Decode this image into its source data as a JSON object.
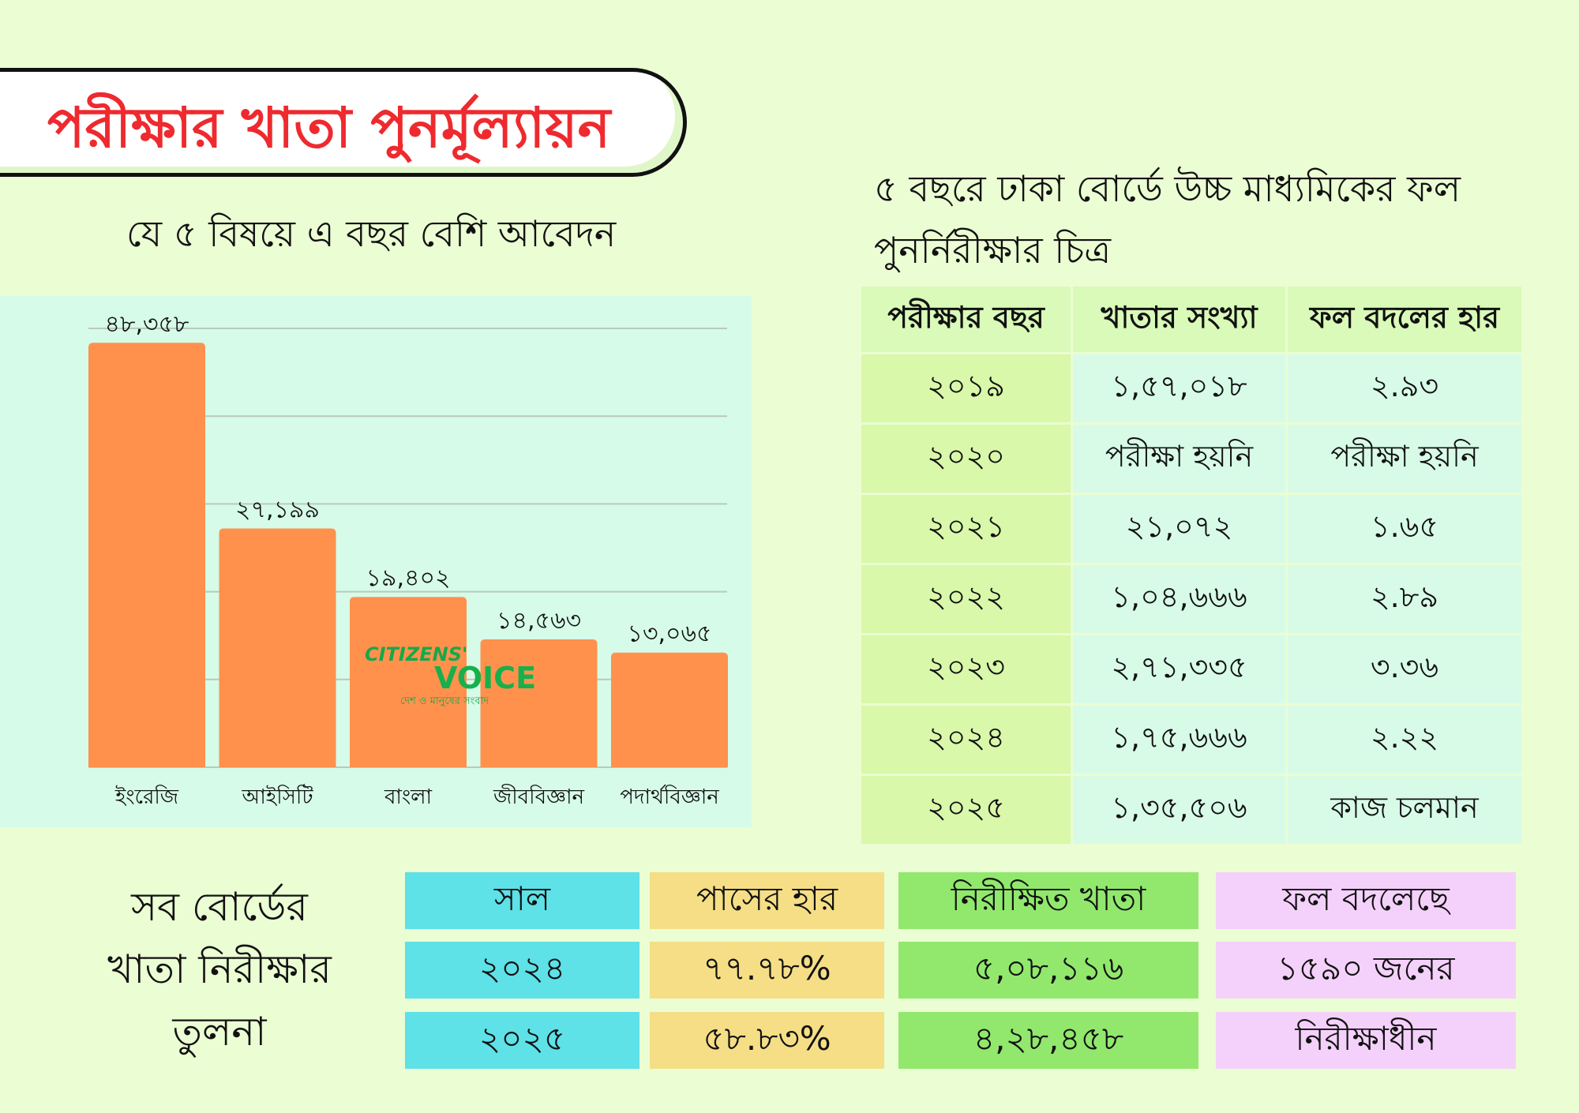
{
  "title": "পরীক্ষার খাতা পুনর্মূল্যায়ন",
  "chart_section": {
    "subtitle": "যে ৫ বিষয়ে এ বছর বেশি আবেদন"
  },
  "logo": {
    "line1": "CITIZENS'",
    "line2": "VOICE",
    "tagline": "দেশ ও মানুষের সংবাদ"
  },
  "chart_data": {
    "type": "bar",
    "categories": [
      "ইংরেজি",
      "আইসিটি",
      "বাংলা",
      "জীববিজ্ঞান",
      "পদার্থবিজ্ঞান"
    ],
    "values": [
      48358,
      27199,
      19402,
      14563,
      13065
    ],
    "data_labels": [
      "৪৮,৩৫৮",
      "২৭,১৯৯",
      "১৯,৪০২",
      "১৪,৫৬৩",
      "১৩,০৬৫"
    ],
    "ylim": [
      0,
      50000
    ],
    "grid": true,
    "bar_color": "#ff914d"
  },
  "history": {
    "heading_line1": "৫ বছরে ঢাকা বোর্ডে উচ্চ মাধ্যমিকের ফল",
    "heading_line2": "পুনর্নিরীক্ষার চিত্র",
    "headers": [
      "পরীক্ষার বছর",
      "খাতার সংখ্যা",
      "ফল বদলের হার"
    ],
    "rows": [
      [
        "২০১৯",
        "১,৫৭,০১৮",
        "২.৯৩"
      ],
      [
        "২০২০",
        "পরীক্ষা হয়নি",
        "পরীক্ষা হয়নি"
      ],
      [
        "২০২১",
        "২১,০৭২",
        "১.৬৫"
      ],
      [
        "২০২২",
        "১,০৪,৬৬৬",
        "২.৮৯"
      ],
      [
        "২০২৩",
        "২,৭১,৩৩৫",
        "৩.৩৬"
      ],
      [
        "২০২৪",
        "১,৭৫,৬৬৬",
        "২.২২"
      ],
      [
        "২০২৫",
        "১,৩৫,৫০৬",
        "কাজ চলমান"
      ]
    ]
  },
  "comparison": {
    "label_lines": [
      "সব বোর্ডের",
      "খাতা নিরীক্ষার",
      "তুলনা"
    ],
    "headers": [
      "সাল",
      "পাসের হার",
      "নিরীক্ষিত খাতা",
      "ফল বদলেছে"
    ],
    "rows": [
      [
        "২০২৪",
        "৭৭.৭৮%",
        "৫,০৮,১১৬",
        "১৫৯০ জনের"
      ],
      [
        "২০২৫",
        "৫৮.৮৩%",
        "৪,২৮,৪৫৮",
        "নিরীক্ষাধীন"
      ]
    ],
    "colors": [
      "#5ee1e7",
      "#f5de86",
      "#91e86d",
      "#f4d1fa"
    ]
  }
}
